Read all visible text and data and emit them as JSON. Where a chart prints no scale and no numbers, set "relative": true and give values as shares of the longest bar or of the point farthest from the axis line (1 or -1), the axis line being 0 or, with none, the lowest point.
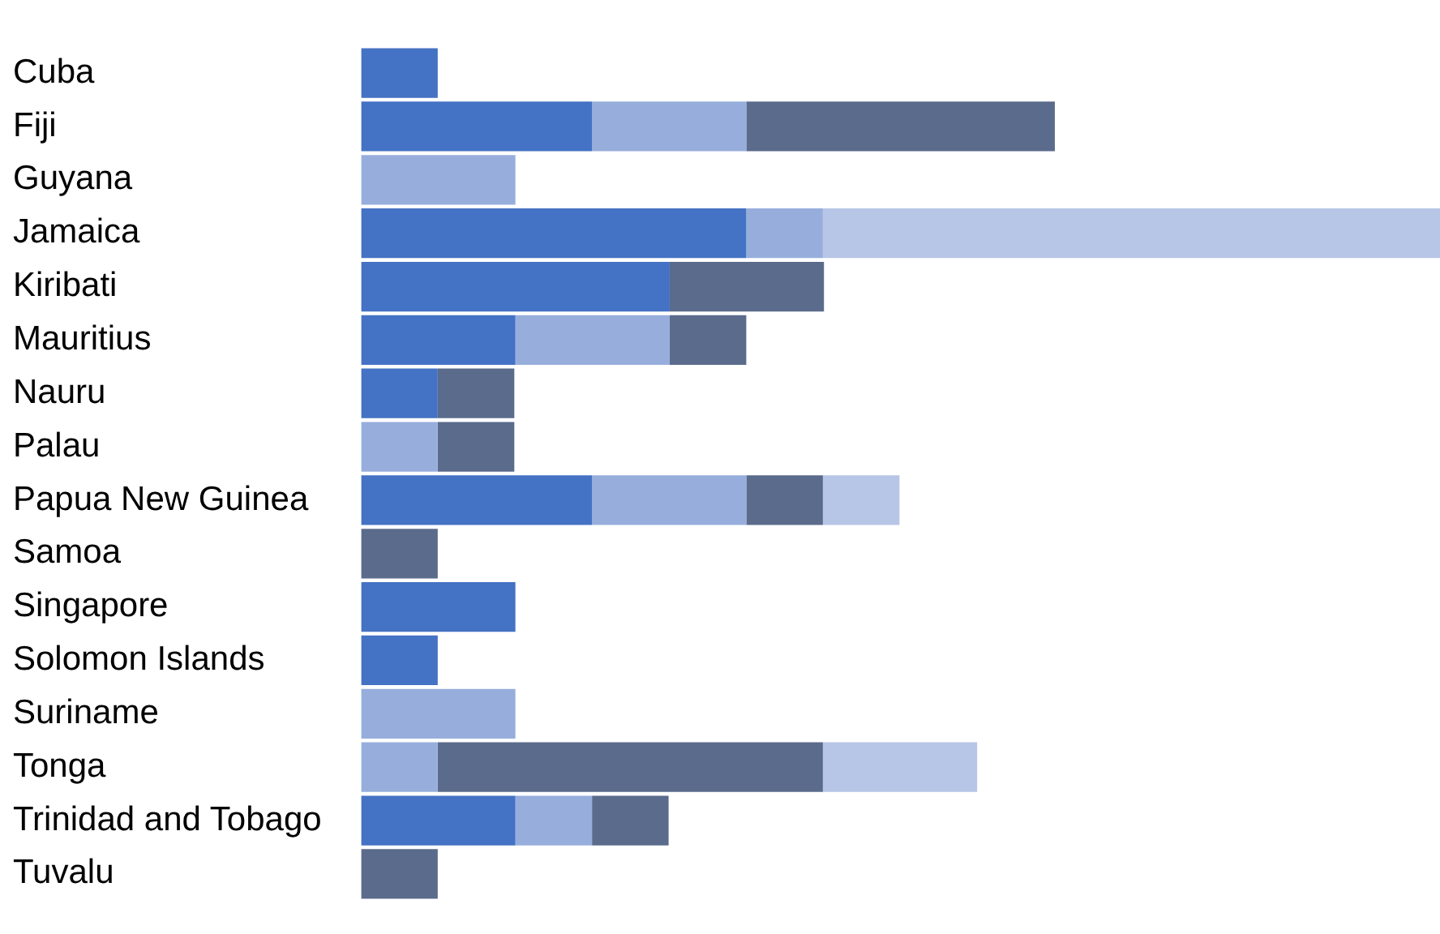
{
  "chart_data": {
    "type": "bar",
    "orientation": "horizontal",
    "stacked": true,
    "relative": true,
    "legend": false,
    "categories": [
      "Cuba",
      "Fiji",
      "Guyana",
      "Jamaica",
      "Kiribati",
      "Mauritius",
      "Nauru",
      "Palau",
      "Papua New Guinea",
      "Samoa",
      "Singapore",
      "Solomon Islands",
      "Suriname",
      "Tonga",
      "Trinidad and Tobago",
      "Tuvalu"
    ],
    "series": [
      {
        "color": "#4472c4",
        "values": [
          0.071,
          0.214,
          null,
          0.357,
          0.286,
          0.143,
          0.071,
          null,
          0.214,
          null,
          0.143,
          0.071,
          null,
          null,
          0.143,
          null
        ]
      },
      {
        "color": "#97aedc",
        "values": [
          null,
          0.143,
          0.143,
          0.071,
          null,
          0.143,
          null,
          0.071,
          0.143,
          null,
          null,
          null,
          0.143,
          0.071,
          0.071,
          null
        ]
      },
      {
        "color": "#5b6b8c",
        "values": [
          null,
          0.286,
          null,
          null,
          0.143,
          0.071,
          0.071,
          0.071,
          0.071,
          0.071,
          null,
          null,
          null,
          0.357,
          0.071,
          0.071
        ]
      },
      {
        "color": "#b7c6e6",
        "values": [
          null,
          null,
          null,
          0.572,
          null,
          null,
          null,
          null,
          0.071,
          null,
          null,
          null,
          null,
          0.143,
          null,
          null
        ]
      }
    ]
  }
}
